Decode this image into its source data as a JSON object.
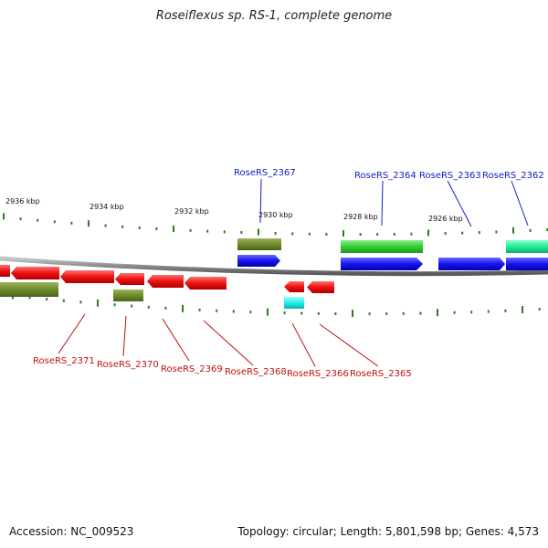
{
  "title": "Roseiflexus sp. RS-1, complete genome",
  "footer": {
    "accession": "Accession: NC_009523",
    "summary": "Topology: circular; Length: 5,801,598 bp; Genes: 4,573"
  },
  "colors": {
    "backbone": "#8a8a8a",
    "tick": "#2f7a1f",
    "forward_label": "#1020c0",
    "reverse_label": "#c01010",
    "red": "#ee1111",
    "blue": "#1515ee",
    "olive": "#6e8a2a",
    "green": "#33cc33",
    "teal": "#22ee99",
    "cyan": "#22eeee"
  },
  "scale_labels": [
    "2936 kbp",
    "2934 kbp",
    "2932 kbp",
    "2930 kbp",
    "2928 kbp",
    "2926 kbp"
  ],
  "labels": {
    "forward": [
      "RoseRS_2367",
      "RoseRS_2364",
      "RoseRS_2363",
      "RoseRS_2362"
    ],
    "reverse": [
      "RoseRS_2371",
      "RoseRS_2370",
      "RoseRS_2369",
      "RoseRS_2368",
      "RoseRS_2366",
      "RoseRS_2365"
    ]
  }
}
